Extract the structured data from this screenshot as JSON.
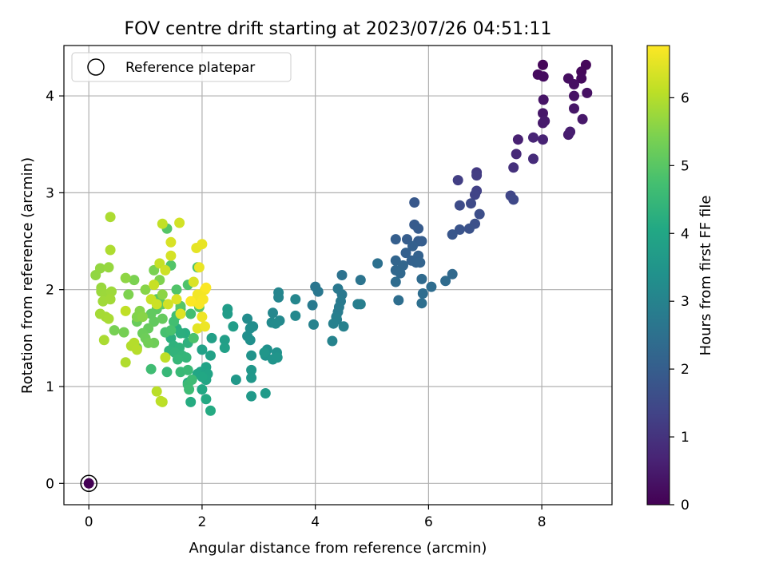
{
  "chart_data": {
    "type": "scatter",
    "title": "FOV centre drift starting at 2023/07/26 04:51:11",
    "xlabel": "Angular distance from reference (arcmin)",
    "ylabel": "Rotation from reference (arcmin)",
    "xlim": [
      -0.44,
      9.24
    ],
    "ylim": [
      -0.22,
      4.52
    ],
    "xticks": [
      "0",
      "2",
      "4",
      "6",
      "8"
    ],
    "yticks": [
      "0",
      "1",
      "2",
      "3",
      "4"
    ],
    "grid": true,
    "legend": {
      "position": "top-left",
      "entries": [
        "Reference platepar"
      ]
    },
    "colorbar": {
      "label": "Hours from first FF file",
      "range": [
        0,
        6.77
      ],
      "ticks": [
        "0",
        "1",
        "2",
        "3",
        "4",
        "5",
        "6"
      ],
      "colormap": "viridis"
    },
    "reference": {
      "name": "Reference platepar",
      "x": 0,
      "y": 0
    },
    "points": [
      [
        0.0,
        0.0,
        0.0
      ],
      [
        8.02,
        4.32,
        0.1
      ],
      [
        8.78,
        4.32,
        0.12
      ],
      [
        8.7,
        4.25,
        0.15
      ],
      [
        8.7,
        4.18,
        0.18
      ],
      [
        7.93,
        4.22,
        0.2
      ],
      [
        8.03,
        4.2,
        0.22
      ],
      [
        8.47,
        4.18,
        0.25
      ],
      [
        8.57,
        4.12,
        0.28
      ],
      [
        8.8,
        4.03,
        0.3
      ],
      [
        8.57,
        4.0,
        0.33
      ],
      [
        8.03,
        3.96,
        0.36
      ],
      [
        8.57,
        3.87,
        0.4
      ],
      [
        8.02,
        3.82,
        0.42
      ],
      [
        8.72,
        3.76,
        0.45
      ],
      [
        8.02,
        3.72,
        0.48
      ],
      [
        8.05,
        3.74,
        0.5
      ],
      [
        8.47,
        3.6,
        0.52
      ],
      [
        8.5,
        3.63,
        0.55
      ],
      [
        7.58,
        3.55,
        0.62
      ],
      [
        8.02,
        3.55,
        0.65
      ],
      [
        7.85,
        3.57,
        0.7
      ],
      [
        7.55,
        3.4,
        0.78
      ],
      [
        7.85,
        3.35,
        0.85
      ],
      [
        7.5,
        3.26,
        0.95
      ],
      [
        6.85,
        3.21,
        1.15
      ],
      [
        6.85,
        3.18,
        1.2
      ],
      [
        6.52,
        3.13,
        1.25
      ],
      [
        6.85,
        3.02,
        1.3
      ],
      [
        6.82,
        2.98,
        1.35
      ],
      [
        7.45,
        2.97,
        1.4
      ],
      [
        7.5,
        2.93,
        1.45
      ],
      [
        6.75,
        2.89,
        1.5
      ],
      [
        6.55,
        2.87,
        1.55
      ],
      [
        6.9,
        2.78,
        1.6
      ],
      [
        6.82,
        2.68,
        1.65
      ],
      [
        6.72,
        2.63,
        1.7
      ],
      [
        6.55,
        2.62,
        1.75
      ],
      [
        6.42,
        2.57,
        1.8
      ],
      [
        5.75,
        2.9,
        1.85
      ],
      [
        5.75,
        2.67,
        1.9
      ],
      [
        5.82,
        2.63,
        1.92
      ],
      [
        5.82,
        2.5,
        1.95
      ],
      [
        5.62,
        2.52,
        1.97
      ],
      [
        5.88,
        2.5,
        2.0
      ],
      [
        5.42,
        2.52,
        2.02
      ],
      [
        5.72,
        2.45,
        2.05
      ],
      [
        5.6,
        2.38,
        2.07
      ],
      [
        5.82,
        2.35,
        2.1
      ],
      [
        5.7,
        2.3,
        2.12
      ],
      [
        5.78,
        2.28,
        2.15
      ],
      [
        5.85,
        2.28,
        2.17
      ],
      [
        5.42,
        2.3,
        2.2
      ],
      [
        5.55,
        2.25,
        2.22
      ],
      [
        5.42,
        2.2,
        2.25
      ],
      [
        5.5,
        2.17,
        2.27
      ],
      [
        6.42,
        2.16,
        2.3
      ],
      [
        5.88,
        2.11,
        2.32
      ],
      [
        6.3,
        2.09,
        2.35
      ],
      [
        5.42,
        2.08,
        2.37
      ],
      [
        6.05,
        2.03,
        2.4
      ],
      [
        5.9,
        1.96,
        2.42
      ],
      [
        5.47,
        1.89,
        2.45
      ],
      [
        5.88,
        1.86,
        2.47
      ],
      [
        5.1,
        2.27,
        2.5
      ],
      [
        4.47,
        2.15,
        2.55
      ],
      [
        4.8,
        2.1,
        2.6
      ],
      [
        4.0,
        2.03,
        2.65
      ],
      [
        4.05,
        1.98,
        2.68
      ],
      [
        4.4,
        2.01,
        2.7
      ],
      [
        4.47,
        1.95,
        2.72
      ],
      [
        4.45,
        1.88,
        2.75
      ],
      [
        3.95,
        1.84,
        2.77
      ],
      [
        4.42,
        1.82,
        2.8
      ],
      [
        4.4,
        1.77,
        2.82
      ],
      [
        4.37,
        1.72,
        2.85
      ],
      [
        4.75,
        1.85,
        2.87
      ],
      [
        4.8,
        1.85,
        2.88
      ],
      [
        4.38,
        1.69,
        2.9
      ],
      [
        4.32,
        1.65,
        2.92
      ],
      [
        4.5,
        1.62,
        2.95
      ],
      [
        3.97,
        1.64,
        2.97
      ],
      [
        4.3,
        1.47,
        3.0
      ],
      [
        3.35,
        1.97,
        3.05
      ],
      [
        3.35,
        1.92,
        3.07
      ],
      [
        3.65,
        1.9,
        3.1
      ],
      [
        3.25,
        1.76,
        3.12
      ],
      [
        3.65,
        1.73,
        3.15
      ],
      [
        3.37,
        1.68,
        3.17
      ],
      [
        3.23,
        1.66,
        3.2
      ],
      [
        3.3,
        1.65,
        3.22
      ],
      [
        2.8,
        1.7,
        3.25
      ],
      [
        2.9,
        1.62,
        3.27
      ],
      [
        2.85,
        1.6,
        3.3
      ],
      [
        2.8,
        1.52,
        3.32
      ],
      [
        2.85,
        1.48,
        3.35
      ],
      [
        3.15,
        1.38,
        3.37
      ],
      [
        3.32,
        1.35,
        3.4
      ],
      [
        3.12,
        1.32,
        3.42
      ],
      [
        2.87,
        1.32,
        3.45
      ],
      [
        3.25,
        1.28,
        3.47
      ],
      [
        3.33,
        1.3,
        3.5
      ],
      [
        3.1,
        1.35,
        3.52
      ],
      [
        2.87,
        1.17,
        3.55
      ],
      [
        2.87,
        1.09,
        3.57
      ],
      [
        2.6,
        1.07,
        3.6
      ],
      [
        2.87,
        0.9,
        3.62
      ],
      [
        3.12,
        0.93,
        3.65
      ],
      [
        2.45,
        1.8,
        3.7
      ],
      [
        2.45,
        1.75,
        3.72
      ],
      [
        2.55,
        1.62,
        3.75
      ],
      [
        2.4,
        1.48,
        3.77
      ],
      [
        2.17,
        1.5,
        3.8
      ],
      [
        2.4,
        1.4,
        3.82
      ],
      [
        2.0,
        1.38,
        3.85
      ],
      [
        2.15,
        1.32,
        3.87
      ],
      [
        2.07,
        1.2,
        3.9
      ],
      [
        1.97,
        1.15,
        3.92
      ],
      [
        2.1,
        1.13,
        3.95
      ],
      [
        2.07,
        1.07,
        3.97
      ],
      [
        1.92,
        1.13,
        4.0
      ],
      [
        2.0,
        1.1,
        4.02
      ],
      [
        1.75,
        1.04,
        4.05
      ],
      [
        2.0,
        0.97,
        4.07
      ],
      [
        2.07,
        0.87,
        4.1
      ],
      [
        2.15,
        0.75,
        4.12
      ],
      [
        1.8,
        0.84,
        4.15
      ],
      [
        1.7,
        1.55,
        4.2
      ],
      [
        1.55,
        1.6,
        4.22
      ],
      [
        1.62,
        1.55,
        4.25
      ],
      [
        1.45,
        1.5,
        4.27
      ],
      [
        1.75,
        1.45,
        4.3
      ],
      [
        1.5,
        1.42,
        4.32
      ],
      [
        1.6,
        1.4,
        4.35
      ],
      [
        1.42,
        1.37,
        4.37
      ],
      [
        1.52,
        1.35,
        4.4
      ],
      [
        1.65,
        1.32,
        4.42
      ],
      [
        1.72,
        1.3,
        4.45
      ],
      [
        1.57,
        1.28,
        4.47
      ],
      [
        1.38,
        1.15,
        4.5
      ],
      [
        1.62,
        1.15,
        4.52
      ],
      [
        1.75,
        1.17,
        4.55
      ],
      [
        1.75,
        1.02,
        4.57
      ],
      [
        1.82,
        1.07,
        4.6
      ],
      [
        1.77,
        0.97,
        4.62
      ],
      [
        1.1,
        1.18,
        4.65
      ],
      [
        1.55,
        1.73,
        4.67
      ],
      [
        1.5,
        1.67,
        4.7
      ],
      [
        1.8,
        1.75,
        4.72
      ],
      [
        1.62,
        1.8,
        4.75
      ],
      [
        1.35,
        1.56,
        4.77
      ],
      [
        1.45,
        1.58,
        4.8
      ],
      [
        1.85,
        1.5,
        4.82
      ],
      [
        1.92,
        2.23,
        4.85
      ],
      [
        1.75,
        2.05,
        4.87
      ],
      [
        1.55,
        2.0,
        4.9
      ],
      [
        1.45,
        2.25,
        4.92
      ],
      [
        1.38,
        2.63,
        4.95
      ],
      [
        1.62,
        1.83,
        4.97
      ],
      [
        1.95,
        1.82,
        5.0
      ],
      [
        1.2,
        1.9,
        5.02
      ],
      [
        1.3,
        1.85,
        5.05
      ],
      [
        1.2,
        1.8,
        5.07
      ],
      [
        1.1,
        1.75,
        5.1
      ],
      [
        1.15,
        1.67,
        5.12
      ],
      [
        1.3,
        1.7,
        5.15
      ],
      [
        1.05,
        1.6,
        5.17
      ],
      [
        0.85,
        1.67,
        5.2
      ],
      [
        0.95,
        1.55,
        5.22
      ],
      [
        1.0,
        1.5,
        5.25
      ],
      [
        1.15,
        1.45,
        5.27
      ],
      [
        1.05,
        1.45,
        5.3
      ],
      [
        0.85,
        1.4,
        5.32
      ],
      [
        0.62,
        1.56,
        5.35
      ],
      [
        0.45,
        1.58,
        5.37
      ],
      [
        1.15,
        2.2,
        5.4
      ],
      [
        0.8,
        2.1,
        5.42
      ],
      [
        0.7,
        1.95,
        5.45
      ],
      [
        1.25,
        2.1,
        5.47
      ],
      [
        0.85,
        1.72,
        5.5
      ],
      [
        0.9,
        1.78,
        5.52
      ],
      [
        1.0,
        2.0,
        5.55
      ],
      [
        0.95,
        1.72,
        5.57
      ],
      [
        1.3,
        1.95,
        5.6
      ],
      [
        0.65,
        2.12,
        5.62
      ],
      [
        0.12,
        2.15,
        5.65
      ],
      [
        0.2,
        2.22,
        5.67
      ],
      [
        0.35,
        2.23,
        5.7
      ],
      [
        0.22,
        2.02,
        5.72
      ],
      [
        0.22,
        1.98,
        5.74
      ],
      [
        0.3,
        1.95,
        5.76
      ],
      [
        0.4,
        1.98,
        5.78
      ],
      [
        0.25,
        1.88,
        5.8
      ],
      [
        0.38,
        1.9,
        5.82
      ],
      [
        0.2,
        1.75,
        5.84
      ],
      [
        0.3,
        1.72,
        5.86
      ],
      [
        0.35,
        1.7,
        5.88
      ],
      [
        0.27,
        1.48,
        5.9
      ],
      [
        0.38,
        2.75,
        5.92
      ],
      [
        0.38,
        2.41,
        5.94
      ],
      [
        0.65,
        1.25,
        5.96
      ],
      [
        0.75,
        1.42,
        5.98
      ],
      [
        0.8,
        1.45,
        6.0
      ],
      [
        0.85,
        1.38,
        6.02
      ],
      [
        1.3,
        0.84,
        6.04
      ],
      [
        1.2,
        0.95,
        6.06
      ],
      [
        1.27,
        0.85,
        6.08
      ],
      [
        1.35,
        1.3,
        6.1
      ],
      [
        0.65,
        1.78,
        6.12
      ],
      [
        1.3,
        2.68,
        6.15
      ],
      [
        1.25,
        2.27,
        6.18
      ],
      [
        1.15,
        2.05,
        6.2
      ],
      [
        1.1,
        1.9,
        6.22
      ],
      [
        1.2,
        1.85,
        6.25
      ],
      [
        1.35,
        2.2,
        6.27
      ],
      [
        1.4,
        1.85,
        6.3
      ],
      [
        1.6,
        2.69,
        6.32
      ],
      [
        1.45,
        2.35,
        6.35
      ],
      [
        1.45,
        2.49,
        6.38
      ],
      [
        1.85,
        2.08,
        6.4
      ],
      [
        1.55,
        1.9,
        6.42
      ],
      [
        1.62,
        1.75,
        6.45
      ],
      [
        1.92,
        1.6,
        6.48
      ],
      [
        1.85,
        1.88,
        6.5
      ],
      [
        1.9,
        2.43,
        6.52
      ],
      [
        2.0,
        2.47,
        6.55
      ],
      [
        1.95,
        2.23,
        6.57
      ],
      [
        2.05,
        1.62,
        6.6
      ],
      [
        2.0,
        1.72,
        6.62
      ],
      [
        1.92,
        1.95,
        6.65
      ],
      [
        2.05,
        2.0,
        6.68
      ],
      [
        2.02,
        1.9,
        6.7
      ],
      [
        1.95,
        1.85,
        6.72
      ],
      [
        2.07,
        2.02,
        6.74
      ],
      [
        1.8,
        1.88,
        6.76
      ]
    ]
  }
}
